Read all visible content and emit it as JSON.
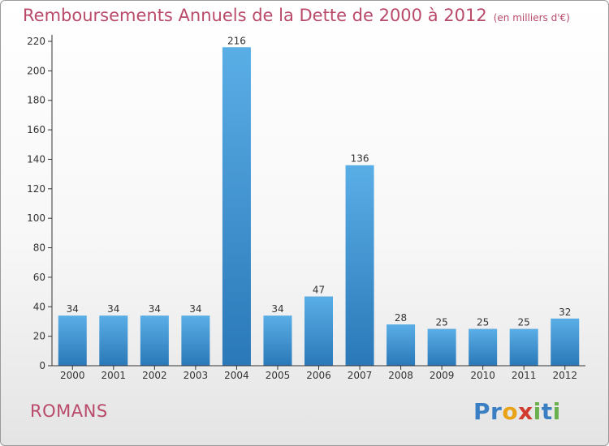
{
  "header": {
    "title": "Remboursements Annuels de la Dette de 2000 à 2012",
    "unit": "(en milliers d'€)"
  },
  "footer": {
    "commune": "ROMANS",
    "logo_letters": [
      {
        "ch": "P",
        "color": "#3a7fc4"
      },
      {
        "ch": "r",
        "color": "#3a7fc4"
      },
      {
        "ch": "o",
        "color": "#e8a317"
      },
      {
        "ch": "x",
        "color": "#d23c2f"
      },
      {
        "ch": "i",
        "color": "#6ab04c"
      },
      {
        "ch": "t",
        "color": "#3a7fc4"
      },
      {
        "ch": "i",
        "color": "#6ab04c"
      }
    ]
  },
  "chart_data": {
    "type": "bar",
    "title": "Remboursements Annuels de la Dette de 2000 à 2012",
    "categories": [
      "2000",
      "2001",
      "2002",
      "2003",
      "2004",
      "2005",
      "2006",
      "2007",
      "2008",
      "2009",
      "2010",
      "2011",
      "2012"
    ],
    "values": [
      34,
      34,
      34,
      34,
      216,
      34,
      47,
      136,
      28,
      25,
      25,
      25,
      32
    ],
    "ylim": [
      0,
      220
    ],
    "yticks": [
      0,
      20,
      40,
      60,
      80,
      100,
      120,
      140,
      160,
      180,
      200,
      220
    ],
    "grid": false,
    "legend": "none",
    "colors": {
      "bar_top": "#5aaee6",
      "bar_bottom": "#2a78b8",
      "axis": "#333333",
      "text": "#333333"
    }
  }
}
